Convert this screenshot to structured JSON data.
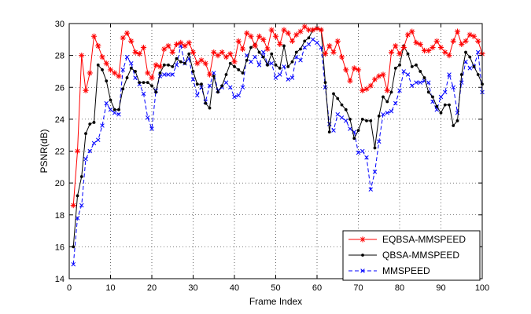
{
  "chart_data": {
    "type": "line",
    "title": "",
    "xlabel": "Frame Index",
    "ylabel": "PSNR(dB)",
    "xlim": [
      0,
      100
    ],
    "ylim": [
      14,
      30
    ],
    "xticks": [
      0,
      10,
      20,
      30,
      40,
      50,
      60,
      70,
      80,
      90,
      100
    ],
    "yticks": [
      14,
      16,
      18,
      20,
      22,
      24,
      26,
      28,
      30
    ],
    "grid": true,
    "legend_position": "bottom-right",
    "x": [
      1,
      2,
      3,
      4,
      5,
      6,
      7,
      8,
      9,
      10,
      11,
      12,
      13,
      14,
      15,
      16,
      17,
      18,
      19,
      20,
      21,
      22,
      23,
      24,
      25,
      26,
      27,
      28,
      29,
      30,
      31,
      32,
      33,
      34,
      35,
      36,
      37,
      38,
      39,
      40,
      41,
      42,
      43,
      44,
      45,
      46,
      47,
      48,
      49,
      50,
      51,
      52,
      53,
      54,
      55,
      56,
      57,
      58,
      59,
      60,
      61,
      62,
      63,
      64,
      65,
      66,
      67,
      68,
      69,
      70,
      71,
      72,
      73,
      74,
      75,
      76,
      77,
      78,
      79,
      80,
      81,
      82,
      83,
      84,
      85,
      86,
      87,
      88,
      89,
      90,
      91,
      92,
      93,
      94,
      95,
      96,
      97,
      98,
      99,
      100
    ],
    "series": [
      {
        "name": "EQBSA-MMSPEED",
        "color": "#ff0000",
        "marker": "asterisk",
        "line_style": "solid",
        "values": [
          18.6,
          22.0,
          28.0,
          25.8,
          26.9,
          29.2,
          28.6,
          27.9,
          27.5,
          27.1,
          26.9,
          26.7,
          29.1,
          29.4,
          28.9,
          28.2,
          28.1,
          28.5,
          26.9,
          26.6,
          27.4,
          27.3,
          28.4,
          28.6,
          28.2,
          28.7,
          28.8,
          28.6,
          28.8,
          28.2,
          27.5,
          27.7,
          27.5,
          26.8,
          28.2,
          28.0,
          28.2,
          27.9,
          28.1,
          27.6,
          28.9,
          28.4,
          29.4,
          29.2,
          28.6,
          29.2,
          29.0,
          28.4,
          29.6,
          29.2,
          28.7,
          29.6,
          29.4,
          28.9,
          29.3,
          29.5,
          29.8,
          29.6,
          29.6,
          29.7,
          29.6,
          28.1,
          28.6,
          28.2,
          28.9,
          27.9,
          27.1,
          26.4,
          27.2,
          27.1,
          25.8,
          25.9,
          26.1,
          26.5,
          26.7,
          26.8,
          25.8,
          28.2,
          28.6,
          28.1,
          28.5,
          29.3,
          29.5,
          28.8,
          28.7,
          28.3,
          28.3,
          28.5,
          28.9,
          28.5,
          28.2,
          28.0,
          28.9,
          29.5,
          28.7,
          28.9,
          29.3,
          29.2,
          28.9,
          28.1
        ]
      },
      {
        "name": "QBSA-MMSPEED",
        "color": "#000000",
        "marker": "dot",
        "line_style": "solid",
        "values": [
          16.0,
          19.2,
          20.4,
          23.1,
          23.7,
          23.8,
          27.4,
          27.1,
          26.4,
          25.2,
          24.6,
          24.6,
          25.9,
          26.6,
          27.2,
          27.0,
          26.3,
          26.3,
          26.3,
          26.1,
          25.7,
          26.9,
          27.4,
          27.4,
          27.3,
          27.8,
          27.6,
          27.5,
          28.1,
          27.0,
          26.2,
          26.2,
          25.0,
          24.7,
          26.7,
          25.7,
          26.1,
          26.8,
          27.5,
          27.3,
          27.1,
          26.9,
          27.7,
          28.5,
          28.7,
          28.2,
          27.9,
          27.4,
          28.1,
          27.4,
          27.2,
          28.6,
          27.3,
          27.6,
          28.2,
          28.4,
          28.9,
          29.1,
          29.6,
          29.7,
          29.6,
          26.3,
          23.2,
          25.6,
          25.3,
          24.9,
          24.6,
          24.0,
          22.8,
          23.3,
          24.0,
          23.9,
          23.9,
          22.2,
          24.2,
          25.4,
          25.1,
          25.7,
          27.2,
          27.4,
          28.6,
          28.1,
          27.3,
          27.4,
          27.0,
          26.6,
          25.7,
          25.4,
          24.8,
          24.4,
          24.9,
          24.9,
          23.6,
          23.9,
          26.8,
          28.2,
          27.9,
          27.3,
          26.8,
          26.2
        ]
      },
      {
        "name": "MMSPEED",
        "color": "#0000ff",
        "marker": "x",
        "line_style": "dashed",
        "values": [
          14.9,
          17.8,
          18.6,
          21.5,
          22.0,
          22.5,
          22.7,
          23.6,
          25.0,
          24.6,
          24.4,
          24.3,
          27.1,
          27.9,
          27.5,
          26.6,
          26.2,
          25.6,
          24.1,
          23.4,
          25.8,
          26.7,
          26.8,
          26.8,
          26.8,
          27.4,
          28.6,
          27.5,
          27.8,
          26.5,
          25.5,
          26.0,
          25.1,
          26.1,
          26.9,
          25.8,
          26.0,
          26.3,
          26.0,
          25.4,
          25.5,
          26.0,
          28.0,
          27.6,
          27.9,
          27.4,
          28.2,
          27.5,
          27.5,
          26.6,
          26.8,
          27.3,
          26.5,
          26.6,
          27.9,
          27.7,
          28.5,
          28.7,
          29.0,
          28.8,
          28.5,
          26.0,
          23.7,
          23.3,
          24.3,
          24.1,
          23.9,
          23.4,
          23.2,
          21.9,
          22.0,
          21.6,
          19.6,
          20.7,
          22.6,
          24.3,
          24.4,
          24.5,
          25.0,
          25.8,
          27.0,
          26.8,
          26.1,
          26.3,
          26.3,
          26.4,
          26.3,
          25.1,
          24.6,
          25.4,
          25.7,
          26.8,
          26.0,
          24.4,
          26.3,
          27.6,
          27.2,
          27.3,
          28.2,
          25.7
        ]
      }
    ]
  }
}
